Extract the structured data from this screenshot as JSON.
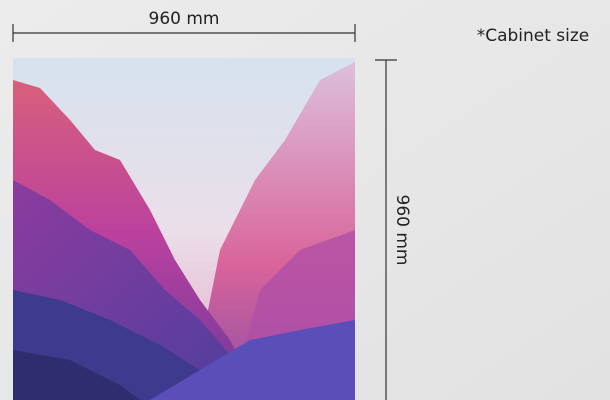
{
  "dimensions": {
    "width_label": "960 mm",
    "height_label": "960 mm",
    "note": "*Cabinet size"
  }
}
